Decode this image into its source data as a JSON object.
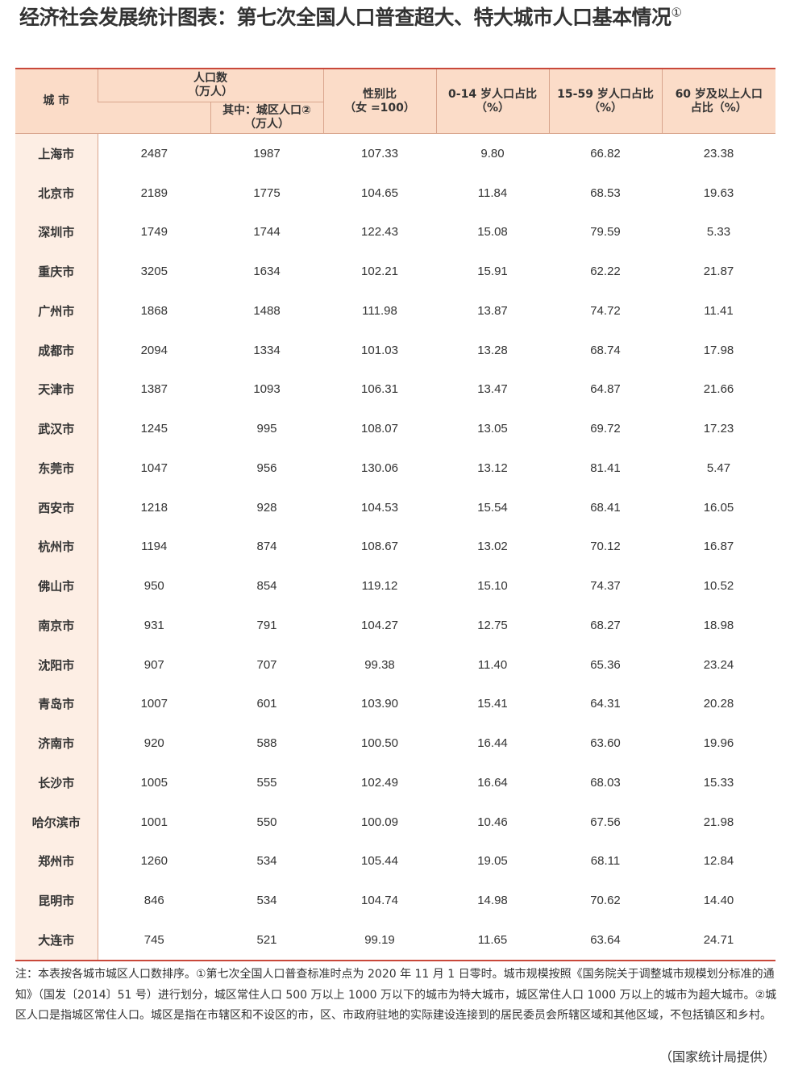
{
  "title": "经济社会发展统计图表：第七次全国人口普查超大、特大城市人口基本情况",
  "title_note": "①",
  "headers": {
    "city": "城 市",
    "pop": "人口数\n（万人）",
    "urban": "其中：城区人口②\n（万人）",
    "sex_ratio": "性别比\n（女 =100）",
    "age0_14": "0-14 岁人口占比\n（%）",
    "age15_59": "15-59 岁人口占比\n（%）",
    "age60": "60 岁及以上人口\n占比（%）"
  },
  "rows": [
    [
      "上海市",
      "2487",
      "1987",
      "107.33",
      "9.80",
      "66.82",
      "23.38"
    ],
    [
      "北京市",
      "2189",
      "1775",
      "104.65",
      "11.84",
      "68.53",
      "19.63"
    ],
    [
      "深圳市",
      "1749",
      "1744",
      "122.43",
      "15.08",
      "79.59",
      "5.33"
    ],
    [
      "重庆市",
      "3205",
      "1634",
      "102.21",
      "15.91",
      "62.22",
      "21.87"
    ],
    [
      "广州市",
      "1868",
      "1488",
      "111.98",
      "13.87",
      "74.72",
      "11.41"
    ],
    [
      "成都市",
      "2094",
      "1334",
      "101.03",
      "13.28",
      "68.74",
      "17.98"
    ],
    [
      "天津市",
      "1387",
      "1093",
      "106.31",
      "13.47",
      "64.87",
      "21.66"
    ],
    [
      "武汉市",
      "1245",
      "995",
      "108.07",
      "13.05",
      "69.72",
      "17.23"
    ],
    [
      "东莞市",
      "1047",
      "956",
      "130.06",
      "13.12",
      "81.41",
      "5.47"
    ],
    [
      "西安市",
      "1218",
      "928",
      "104.53",
      "15.54",
      "68.41",
      "16.05"
    ],
    [
      "杭州市",
      "1194",
      "874",
      "108.67",
      "13.02",
      "70.12",
      "16.87"
    ],
    [
      "佛山市",
      "950",
      "854",
      "119.12",
      "15.10",
      "74.37",
      "10.52"
    ],
    [
      "南京市",
      "931",
      "791",
      "104.27",
      "12.75",
      "68.27",
      "18.98"
    ],
    [
      "沈阳市",
      "907",
      "707",
      "99.38",
      "11.40",
      "65.36",
      "23.24"
    ],
    [
      "青岛市",
      "1007",
      "601",
      "103.90",
      "15.41",
      "64.31",
      "20.28"
    ],
    [
      "济南市",
      "920",
      "588",
      "100.50",
      "16.44",
      "63.60",
      "19.96"
    ],
    [
      "长沙市",
      "1005",
      "555",
      "102.49",
      "16.64",
      "68.03",
      "15.33"
    ],
    [
      "哈尔滨市",
      "1001",
      "550",
      "100.09",
      "10.46",
      "67.56",
      "21.98"
    ],
    [
      "郑州市",
      "1260",
      "534",
      "105.44",
      "19.05",
      "68.11",
      "12.84"
    ],
    [
      "昆明市",
      "846",
      "534",
      "104.74",
      "14.98",
      "70.62",
      "14.40"
    ],
    [
      "大连市",
      "745",
      "521",
      "99.19",
      "11.65",
      "63.64",
      "24.71"
    ]
  ],
  "notes": "注：本表按各城市城区人口数排序。①第七次全国人口普查标准时点为 2020 年 11 月 1 日零时。城市规模按照《国务院关于调整城市规模划分标准的通知》（国发〔2014〕51 号）进行划分，城区常住人口 500 万以上 1000 万以下的城市为特大城市，城区常住人口 1000 万以上的城市为超大城市。②城区人口是指城区常住人口。城区是指在市辖区和不设区的市，区、市政府驻地的实际建设连接到的居民委员会所辖区域和其他区域，不包括镇区和乡村。",
  "source": "（国家统计局提供）",
  "colors": {
    "header_bg": "#fbdcc8",
    "city_bg": "#fdeee4",
    "rule": "#c9483a"
  }
}
